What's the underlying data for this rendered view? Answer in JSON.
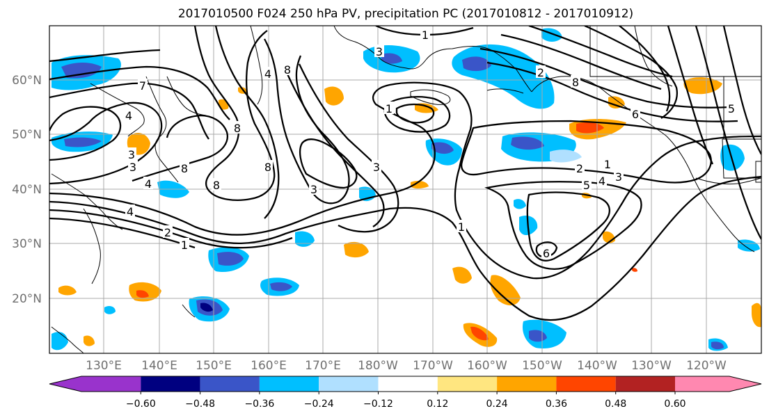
{
  "title": "2017010500 F024 250 hPa PV, precipitation PC (2017010812 - 2017010912)",
  "latitude_labels": [
    "60°N",
    "50°N",
    "40°N",
    "30°N",
    "20°N"
  ],
  "longitude_labels": [
    "130°E",
    "140°E",
    "150°E",
    "160°E",
    "170°E",
    "180°W",
    "170°W",
    "160°W",
    "150°W",
    "140°W",
    "130°W",
    "120°W"
  ],
  "colorbar": {
    "tick_labels": [
      "−0.60",
      "−0.48",
      "−0.36",
      "−0.24",
      "−0.12",
      "0.12",
      "0.24",
      "0.36",
      "0.48",
      "0.60"
    ],
    "colors": [
      "#9933cc",
      "#000080",
      "#3a55c8",
      "#00bfff",
      "#b0e0ff",
      "#ffffff",
      "#ffe680",
      "#ffa500",
      "#ff4500",
      "#b22222",
      "#ff88b0"
    ]
  },
  "pv_contour_labels": [
    {
      "text": "7"
    },
    {
      "text": "4"
    },
    {
      "text": "8"
    },
    {
      "text": "8"
    },
    {
      "text": "3"
    },
    {
      "text": "4"
    },
    {
      "text": "1"
    },
    {
      "text": "1"
    },
    {
      "text": "8"
    },
    {
      "text": "4"
    },
    {
      "text": "3"
    },
    {
      "text": "8"
    },
    {
      "text": "8"
    },
    {
      "text": "3"
    },
    {
      "text": "1"
    },
    {
      "text": "2"
    },
    {
      "text": "1"
    },
    {
      "text": "5"
    },
    {
      "text": "4"
    },
    {
      "text": "3"
    },
    {
      "text": "6"
    },
    {
      "text": "2"
    },
    {
      "text": "3"
    },
    {
      "text": "3"
    },
    {
      "text": "4"
    },
    {
      "text": "2"
    },
    {
      "text": "1"
    },
    {
      "text": "5"
    },
    {
      "text": "8"
    },
    {
      "text": "6"
    }
  ]
}
